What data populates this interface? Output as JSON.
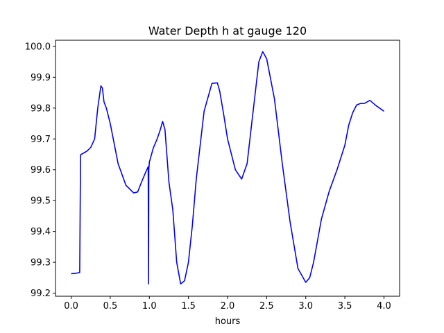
{
  "chart_data": {
    "type": "line",
    "title": "Water Depth h at gauge 120",
    "xlabel": "hours",
    "ylabel": "",
    "xlim": [
      -0.2,
      4.2
    ],
    "ylim": [
      99.19,
      100.02
    ],
    "xticks": [
      0.0,
      0.5,
      1.0,
      1.5,
      2.0,
      2.5,
      3.0,
      3.5,
      4.0
    ],
    "xtick_labels": [
      "0.0",
      "0.5",
      "1.0",
      "1.5",
      "2.0",
      "2.5",
      "3.0",
      "3.5",
      "4.0"
    ],
    "yticks": [
      99.2,
      99.3,
      99.4,
      99.5,
      99.6,
      99.7,
      99.8,
      99.9,
      100.0
    ],
    "ytick_labels": [
      "99.2",
      "99.3",
      "99.4",
      "99.5",
      "99.6",
      "99.7",
      "99.8",
      "99.9",
      "100.0"
    ],
    "grid": false,
    "series": [
      {
        "color": "#0000ff",
        "x": [
          0.0,
          0.05,
          0.11,
          0.12,
          0.13,
          0.2,
          0.25,
          0.3,
          0.34,
          0.38,
          0.4,
          0.42,
          0.45,
          0.5,
          0.6,
          0.7,
          0.8,
          0.85,
          0.9,
          0.95,
          0.985,
          0.99,
          0.993,
          1.0,
          1.05,
          1.1,
          1.14,
          1.17,
          1.2,
          1.25,
          1.3,
          1.35,
          1.4,
          1.45,
          1.5,
          1.55,
          1.6,
          1.7,
          1.8,
          1.87,
          1.9,
          1.95,
          2.0,
          2.1,
          2.18,
          2.25,
          2.3,
          2.4,
          2.45,
          2.5,
          2.6,
          2.7,
          2.8,
          2.9,
          3.0,
          3.05,
          3.1,
          3.2,
          3.3,
          3.4,
          3.5,
          3.55,
          3.6,
          3.65,
          3.7,
          3.75,
          3.82,
          3.9,
          4.0
        ],
        "y": [
          99.263,
          99.264,
          99.267,
          99.648,
          99.65,
          99.66,
          99.672,
          99.7,
          99.8,
          99.872,
          99.865,
          99.82,
          99.8,
          99.75,
          99.62,
          99.55,
          99.525,
          99.528,
          99.56,
          99.59,
          99.61,
          99.23,
          99.6,
          99.625,
          99.67,
          99.7,
          99.73,
          99.757,
          99.73,
          99.56,
          99.47,
          99.3,
          99.23,
          99.24,
          99.3,
          99.42,
          99.57,
          99.79,
          99.88,
          99.882,
          99.855,
          99.78,
          99.7,
          99.6,
          99.57,
          99.62,
          99.73,
          99.95,
          99.983,
          99.96,
          99.83,
          99.62,
          99.43,
          99.28,
          99.235,
          99.25,
          99.3,
          99.44,
          99.53,
          99.6,
          99.68,
          99.745,
          99.785,
          99.81,
          99.815,
          99.815,
          99.825,
          99.808,
          99.79
        ]
      }
    ]
  }
}
